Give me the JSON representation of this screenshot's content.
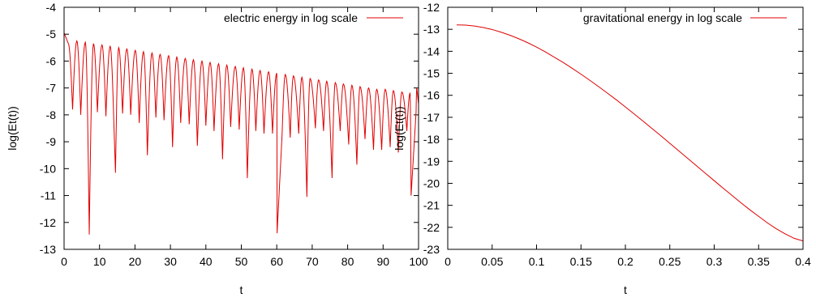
{
  "chart_data": [
    {
      "type": "line",
      "title": "",
      "xlabel": "t",
      "ylabel": "log(Et(t))",
      "xlim": [
        0,
        100
      ],
      "ylim": [
        -13,
        -4
      ],
      "xticks": [
        0,
        10,
        20,
        30,
        40,
        50,
        60,
        70,
        80,
        90,
        100
      ],
      "yticks": [
        -13,
        -12,
        -11,
        -10,
        -9,
        -8,
        -7,
        -6,
        -5,
        -4
      ],
      "grid": false,
      "legend_position": "top-right",
      "series": [
        {
          "name": "electric energy in log scale",
          "color": "#e00000",
          "start": -4.95,
          "period": 2.35,
          "peaks": [
            [
              1.2,
              -5.35
            ],
            [
              3.6,
              -5.25
            ],
            [
              6.0,
              -5.3
            ],
            [
              8.3,
              -5.35
            ],
            [
              10.7,
              -5.4
            ],
            [
              13.0,
              -5.45
            ],
            [
              15.4,
              -5.5
            ],
            [
              17.7,
              -5.55
            ],
            [
              20.1,
              -5.6
            ],
            [
              22.4,
              -5.65
            ],
            [
              24.8,
              -5.7
            ],
            [
              27.1,
              -5.75
            ],
            [
              29.5,
              -5.8
            ],
            [
              31.8,
              -5.85
            ],
            [
              34.2,
              -5.9
            ],
            [
              36.5,
              -5.95
            ],
            [
              38.9,
              -6.0
            ],
            [
              41.2,
              -6.05
            ],
            [
              43.6,
              -6.1
            ],
            [
              45.9,
              -6.15
            ],
            [
              48.3,
              -6.2
            ],
            [
              50.6,
              -6.25
            ],
            [
              53.0,
              -6.3
            ],
            [
              55.3,
              -6.35
            ],
            [
              57.7,
              -6.4
            ],
            [
              60.0,
              -6.45
            ],
            [
              62.4,
              -6.5
            ],
            [
              64.7,
              -6.55
            ],
            [
              67.1,
              -6.6
            ],
            [
              69.4,
              -6.65
            ],
            [
              71.8,
              -6.7
            ],
            [
              74.1,
              -6.75
            ],
            [
              76.5,
              -6.8
            ],
            [
              78.8,
              -6.85
            ],
            [
              81.2,
              -6.9
            ],
            [
              83.5,
              -6.95
            ],
            [
              85.9,
              -7.0
            ],
            [
              88.2,
              -7.05
            ],
            [
              90.6,
              -7.05
            ],
            [
              92.9,
              -7.1
            ],
            [
              95.3,
              -7.15
            ],
            [
              97.6,
              -7.2
            ],
            [
              99.5,
              -7.0
            ]
          ],
          "troughs": [
            [
              2.4,
              -7.8
            ],
            [
              4.7,
              -8.0
            ],
            [
              7.1,
              -12.45
            ],
            [
              9.4,
              -7.9
            ],
            [
              11.8,
              -8.05
            ],
            [
              14.1,
              -8.55
            ],
            [
              14.5,
              -10.15
            ],
            [
              16.5,
              -7.95
            ],
            [
              18.8,
              -8.0
            ],
            [
              21.2,
              -8.3
            ],
            [
              23.5,
              -9.5
            ],
            [
              25.9,
              -8.1
            ],
            [
              28.2,
              -8.2
            ],
            [
              30.6,
              -9.2
            ],
            [
              32.9,
              -8.3
            ],
            [
              35.3,
              -8.35
            ],
            [
              37.6,
              -9.15
            ],
            [
              40.0,
              -8.4
            ],
            [
              42.3,
              -8.6
            ],
            [
              44.7,
              -9.65
            ],
            [
              47.0,
              -8.45
            ],
            [
              49.4,
              -8.55
            ],
            [
              51.7,
              -10.35
            ],
            [
              54.1,
              -8.6
            ],
            [
              56.4,
              -8.7
            ],
            [
              58.8,
              -8.7
            ],
            [
              60.1,
              -12.4
            ],
            [
              61.5,
              -8.75
            ],
            [
              63.8,
              -8.85
            ],
            [
              66.2,
              -8.7
            ],
            [
              68.5,
              -11.05
            ],
            [
              70.9,
              -8.5
            ],
            [
              73.2,
              -8.6
            ],
            [
              75.6,
              -10.35
            ],
            [
              77.9,
              -8.6
            ],
            [
              80.3,
              -9.1
            ],
            [
              82.6,
              -9.85
            ],
            [
              84.9,
              -8.9
            ],
            [
              87.3,
              -9.3
            ],
            [
              89.6,
              -9.3
            ],
            [
              92.0,
              -9.2
            ],
            [
              94.3,
              -9.4
            ],
            [
              96.7,
              -8.6
            ],
            [
              97.9,
              -11.0
            ],
            [
              99.3,
              -7.9
            ]
          ]
        }
      ]
    },
    {
      "type": "line",
      "title": "",
      "xlabel": "t",
      "ylabel": "log(Et(t))",
      "xlim": [
        0,
        0.4
      ],
      "ylim": [
        -23,
        -12
      ],
      "xticks": [
        0,
        0.05,
        0.1,
        0.15,
        0.2,
        0.25,
        0.3,
        0.35,
        0.4
      ],
      "yticks": [
        -23,
        -22,
        -21,
        -20,
        -19,
        -18,
        -17,
        -16,
        -15,
        -14,
        -13,
        -12
      ],
      "grid": false,
      "legend_position": "top-right",
      "series": [
        {
          "name": "gravitational energy in log scale",
          "color": "#e00000",
          "x": [
            0.01,
            0.02,
            0.03,
            0.04,
            0.05,
            0.06,
            0.07,
            0.08,
            0.09,
            0.1,
            0.11,
            0.12,
            0.13,
            0.14,
            0.15,
            0.16,
            0.17,
            0.18,
            0.19,
            0.2,
            0.21,
            0.22,
            0.23,
            0.24,
            0.25,
            0.26,
            0.27,
            0.28,
            0.29,
            0.3,
            0.31,
            0.32,
            0.33,
            0.34,
            0.35,
            0.36,
            0.37,
            0.38,
            0.39,
            0.4
          ],
          "y": [
            -12.8,
            -12.81,
            -12.85,
            -12.92,
            -13.01,
            -13.13,
            -13.27,
            -13.43,
            -13.61,
            -13.81,
            -14.03,
            -14.27,
            -14.51,
            -14.77,
            -15.04,
            -15.32,
            -15.61,
            -15.91,
            -16.21,
            -16.53,
            -16.85,
            -17.18,
            -17.51,
            -17.84,
            -18.18,
            -18.52,
            -18.86,
            -19.2,
            -19.54,
            -19.88,
            -20.22,
            -20.55,
            -20.88,
            -21.2,
            -21.5,
            -21.8,
            -22.07,
            -22.3,
            -22.5,
            -22.62
          ]
        }
      ]
    }
  ]
}
